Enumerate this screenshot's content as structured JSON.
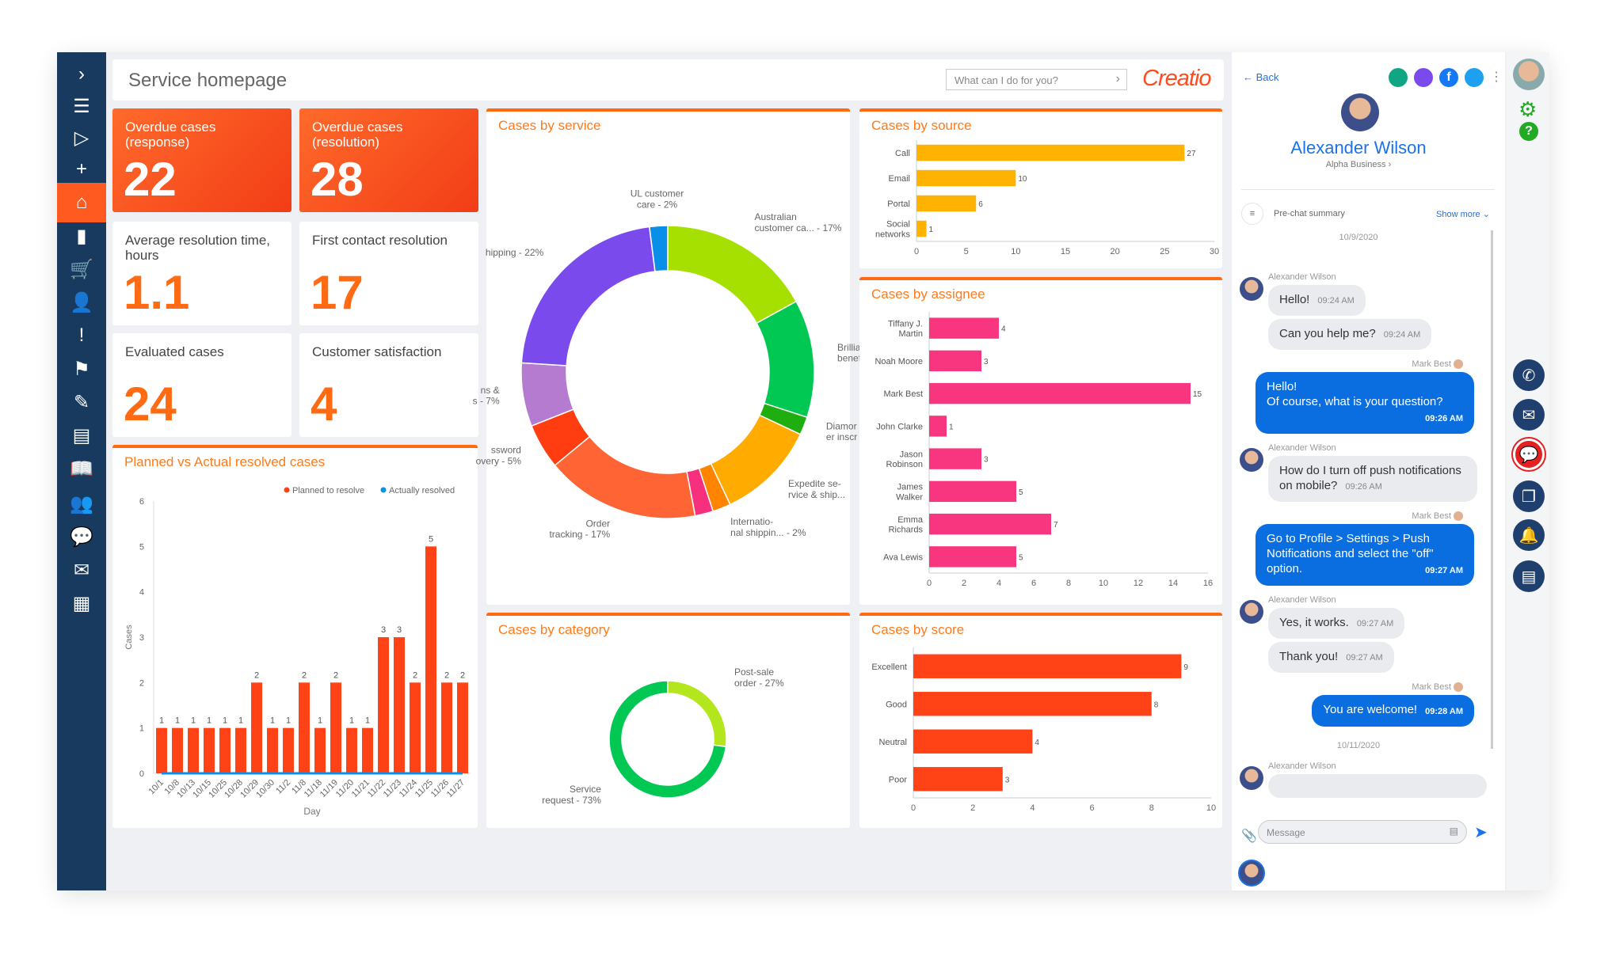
{
  "header": {
    "title": "Service homepage",
    "search_placeholder": "What can I do for you?",
    "logo": "Creatio"
  },
  "sidebar": {
    "items": [
      {
        "icon": "chevron-right-icon",
        "glyph": "›"
      },
      {
        "icon": "menu-icon",
        "glyph": "☰"
      },
      {
        "icon": "play-icon",
        "glyph": "▷"
      },
      {
        "icon": "plus-icon",
        "glyph": "+"
      },
      {
        "icon": "home-icon",
        "glyph": "⌂",
        "active": true
      },
      {
        "icon": "bar-chart-icon",
        "glyph": "▮"
      },
      {
        "icon": "cart-icon",
        "glyph": "🛒"
      },
      {
        "icon": "person-icon",
        "glyph": "👤"
      },
      {
        "icon": "alert-icon",
        "glyph": "!"
      },
      {
        "icon": "flag-icon",
        "glyph": "⚑"
      },
      {
        "icon": "tools-icon",
        "glyph": "✎"
      },
      {
        "icon": "document-icon",
        "glyph": "▤"
      },
      {
        "icon": "book-icon",
        "glyph": "📖"
      },
      {
        "icon": "contacts-icon",
        "glyph": "👥"
      },
      {
        "icon": "chats-icon",
        "glyph": "💬"
      },
      {
        "icon": "message-icon",
        "glyph": "✉"
      },
      {
        "icon": "building-icon",
        "glyph": "▦"
      }
    ]
  },
  "tiles": [
    {
      "label": "Overdue cases (response)",
      "value": "22"
    },
    {
      "label": "Overdue cases (resolution)",
      "value": "28"
    },
    {
      "label": "Average resolution time, hours",
      "value": "1.1"
    },
    {
      "label": "First contact resolution",
      "value": "17"
    },
    {
      "label": "Evaluated cases",
      "value": "24"
    },
    {
      "label": "Customer satisfaction",
      "value": "4"
    }
  ],
  "colors": {
    "accent": "#ff6a13",
    "sidebar": "#173a5e",
    "chat_blue": "#0a6ee0",
    "source": "#ffb300",
    "assignee": "#f7367f",
    "score": "#ff4316"
  },
  "chart_data": [
    {
      "id": "planned",
      "type": "bar",
      "title": "Planned vs Actual resolved cases",
      "xlabel": "Day",
      "ylabel": "Cases",
      "ylim": [
        0,
        6
      ],
      "yticks": [
        0,
        1,
        2,
        3,
        4,
        5,
        6
      ],
      "legend": "top-right",
      "categories": [
        "10/1",
        "10/8",
        "10/13",
        "10/15",
        "10/25",
        "10/28",
        "10/29",
        "10/30",
        "11/2",
        "11/8",
        "11/18",
        "11/19",
        "11/20",
        "11/21",
        "11/22",
        "11/23",
        "11/24",
        "11/25",
        "11/26",
        "11/27"
      ],
      "series": [
        {
          "name": "Planned to resolve",
          "color": "#ff4316",
          "values": [
            1,
            1,
            1,
            1,
            1,
            1,
            2,
            1,
            1,
            2,
            1,
            2,
            1,
            1,
            3,
            3,
            2,
            5,
            2,
            2
          ]
        },
        {
          "name": "Actually resolved",
          "color": "#0a8fe8",
          "values": [
            0,
            0,
            0,
            0,
            0,
            0,
            0,
            0,
            0,
            0,
            0,
            0,
            0,
            0,
            0,
            0,
            0,
            0,
            0,
            0
          ]
        }
      ]
    },
    {
      "id": "service",
      "type": "pie",
      "title": "Cases by service",
      "slices": [
        {
          "label": "Australian\ncustomer ca... - 17%",
          "value": 17,
          "color": "#a6e000"
        },
        {
          "label": "Brillia\nbenef",
          "value": 13,
          "color": "#00c853"
        },
        {
          "label": "Diamor\ner inscr",
          "value": 2,
          "color": "#1fae0f"
        },
        {
          "label": "Expedite se-\nrvice & ship...",
          "value": 11,
          "color": "#ffab00"
        },
        {
          "label": "Internatio-\nnal shippin... - 2%",
          "value": 2,
          "color": "#ff8500"
        },
        {
          "label": "",
          "value": 2,
          "color": "#f7307e"
        },
        {
          "label": "Order\ntracking - 17%",
          "value": 17,
          "color": "#ff6434"
        },
        {
          "label": "ssword\novery - 5%",
          "value": 5,
          "color": "#ff3d10"
        },
        {
          "label": "ns &\ns - 7%",
          "value": 7,
          "color": "#b57bd0"
        },
        {
          "label": "hipping - 22%",
          "value": 22,
          "color": "#7a4aec"
        },
        {
          "label": "UL customer\ncare - 2%",
          "value": 2,
          "color": "#0a8fe8"
        }
      ]
    },
    {
      "id": "source",
      "type": "bar",
      "orientation": "horizontal",
      "title": "Cases by source",
      "categories": [
        "Call",
        "Email",
        "Portal",
        "Social\nnetworks"
      ],
      "values": [
        27,
        10,
        6,
        1
      ],
      "xlim": [
        0,
        30
      ],
      "xticks": [
        0,
        5,
        10,
        15,
        20,
        25,
        30
      ]
    },
    {
      "id": "assignee",
      "type": "bar",
      "orientation": "horizontal",
      "title": "Cases by assignee",
      "categories": [
        "Tiffany J.\nMartin",
        "Noah Moore",
        "Mark Best",
        "John Clarke",
        "Jason\nRobinson",
        "James\nWalker",
        "Emma\nRichards",
        "Ava Lewis"
      ],
      "values": [
        4,
        3,
        15,
        1,
        3,
        5,
        7,
        5
      ],
      "xlim": [
        0,
        16
      ],
      "xticks": [
        0,
        2,
        4,
        6,
        8,
        10,
        12,
        14,
        16
      ]
    },
    {
      "id": "category",
      "type": "pie",
      "title": "Cases by category",
      "slices": [
        {
          "label": "Post-sale\norder - 27%",
          "value": 27,
          "color": "#b4e61d"
        },
        {
          "label": "Service\nrequest - 73%",
          "value": 73,
          "color": "#00c853"
        }
      ]
    },
    {
      "id": "score",
      "type": "bar",
      "orientation": "horizontal",
      "title": "Cases by score",
      "categories": [
        "Excellent",
        "Good",
        "Neutral",
        "Poor"
      ],
      "values": [
        9,
        8,
        4,
        3
      ],
      "xlim": [
        0,
        10
      ],
      "xticks": [
        0,
        2,
        4,
        6,
        8,
        10
      ]
    }
  ],
  "chat": {
    "back": "Back",
    "contact_name": "Alexander Wilson",
    "company": "Alpha Business",
    "prechat": "Pre-chat summary",
    "show_more": "Show more",
    "date1": "10/9/2020",
    "date2": "10/11/2020",
    "message_placeholder": "Message",
    "messages": [
      {
        "from": "Alexander Wilson",
        "mine": false,
        "parts": [
          {
            "text": "Hello!",
            "time": "09:24 AM"
          },
          {
            "text": "Can you help me?",
            "time": "09:24 AM"
          }
        ]
      },
      {
        "from": "Mark Best",
        "mine": true,
        "parts": [
          {
            "text": "Hello!\nOf course, what is your question?",
            "time": "09:26 AM"
          }
        ]
      },
      {
        "from": "Alexander Wilson",
        "mine": false,
        "parts": [
          {
            "text": "How do I turn off push notifications on mobile?",
            "time": "09:26 AM"
          }
        ]
      },
      {
        "from": "Mark Best",
        "mine": true,
        "parts": [
          {
            "text": "Go to Profile > Settings > Push Notifications and select the \"off\" option.",
            "time": "09:27 AM"
          }
        ]
      },
      {
        "from": "Alexander Wilson",
        "mine": false,
        "parts": [
          {
            "text": "Yes, it works.",
            "time": "09:27 AM"
          },
          {
            "text": "Thank you!",
            "time": "09:27 AM"
          }
        ]
      },
      {
        "from": "Mark Best",
        "mine": true,
        "parts": [
          {
            "text": "You are welcome!",
            "time": "09:28 AM"
          }
        ]
      }
    ],
    "last_from": "Alexander Wilson"
  }
}
